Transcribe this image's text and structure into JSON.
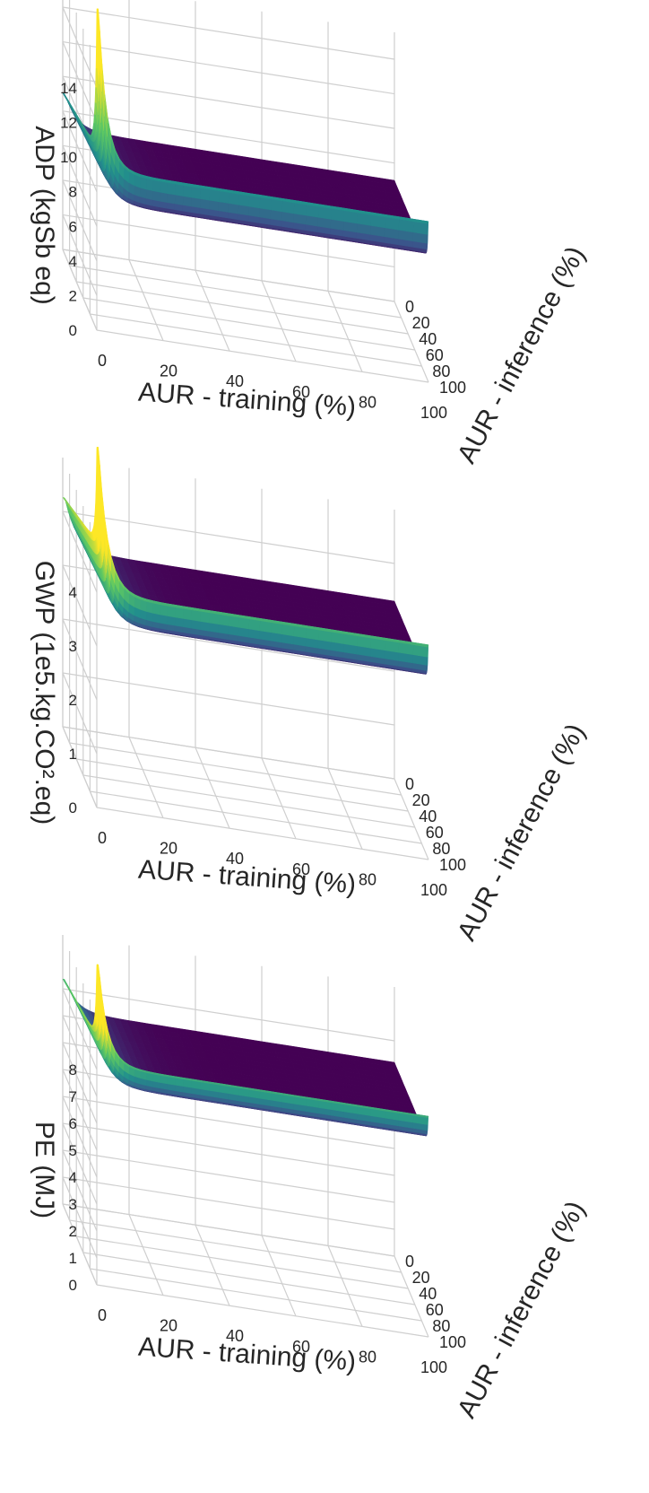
{
  "figure": {
    "x_ticks": [
      "0",
      "20",
      "40",
      "60",
      "80",
      "100"
    ],
    "inf_ticks": [
      "0",
      "20",
      "40",
      "60",
      "80",
      "100"
    ]
  },
  "chart_data": [
    {
      "type": "surface",
      "xlabel": "AUR - training (%)",
      "ylabel": "AUR - inference (%)",
      "zlabel": "ADP (kgSb eq)",
      "z_ticks": [
        "0",
        "2",
        "4",
        "6",
        "8",
        "10",
        "12",
        "14"
      ],
      "xlim": [
        0,
        100
      ],
      "ylim": [
        0,
        100
      ],
      "zlim": [
        0,
        14
      ],
      "base_value": 7.0,
      "inference_edge_value": 10.0,
      "corner_peak": 15.0,
      "grid": true,
      "colormap": [
        "#440154",
        "#3b528b",
        "#21918c",
        "#5ec962",
        "#fde725"
      ]
    },
    {
      "type": "surface",
      "xlabel": "AUR - training (%)",
      "ylabel": "AUR - inference (%)",
      "zlabel": "GWP (1e5.kg.CO².eq)",
      "z_ticks": [
        "0",
        "1",
        "2",
        "3",
        "4"
      ],
      "xlim": [
        0,
        100
      ],
      "ylim": [
        0,
        100
      ],
      "zlim": [
        0,
        4.5
      ],
      "base_value": 3.3,
      "inference_edge_value": 4.2,
      "corner_peak": 4.8,
      "grid": true,
      "colormap": [
        "#440154",
        "#3b528b",
        "#21918c",
        "#5ec962",
        "#fde725"
      ]
    },
    {
      "type": "surface",
      "xlabel": "AUR - training (%)",
      "ylabel": "AUR - inference (%)",
      "zlabel": "PE (MJ)",
      "z_ticks": [
        "0",
        "1",
        "2",
        "3",
        "4",
        "5",
        "6",
        "7",
        "8"
      ],
      "xlim": [
        0,
        100
      ],
      "ylim": [
        0,
        100
      ],
      "zlim": [
        0,
        9
      ],
      "base_value": 7.2,
      "inference_edge_value": 8.5,
      "corner_peak": 9.6,
      "grid": true,
      "colormap": [
        "#440154",
        "#3b528b",
        "#21918c",
        "#5ec962",
        "#fde725"
      ]
    }
  ]
}
